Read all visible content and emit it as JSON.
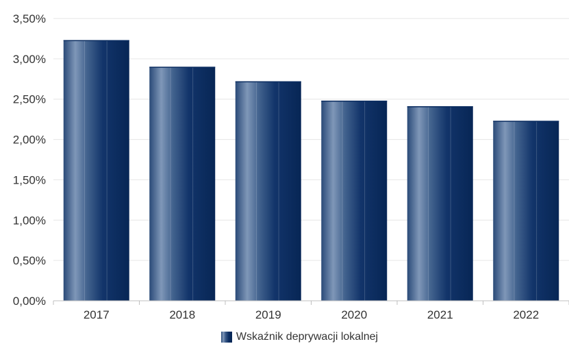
{
  "chart_data": {
    "type": "bar",
    "categories": [
      "2017",
      "2018",
      "2019",
      "2020",
      "2021",
      "2022"
    ],
    "series": [
      {
        "name": "Wskaźnik deprywacji lokalnej",
        "values": [
          3.23,
          2.9,
          2.72,
          2.48,
          2.41,
          2.23
        ]
      }
    ],
    "ylim": [
      0,
      3.5
    ],
    "yticks": [
      "0,00%",
      "0,50%",
      "1,00%",
      "1,50%",
      "2,00%",
      "2,50%",
      "3,00%",
      "3,50%"
    ],
    "grid": true,
    "legend_position": "bottom",
    "colors": {
      "bar_dark": "#072655",
      "bar_light": "#7f97b8",
      "grid": "#e6e6e6",
      "axis": "#bfbfbf"
    }
  }
}
